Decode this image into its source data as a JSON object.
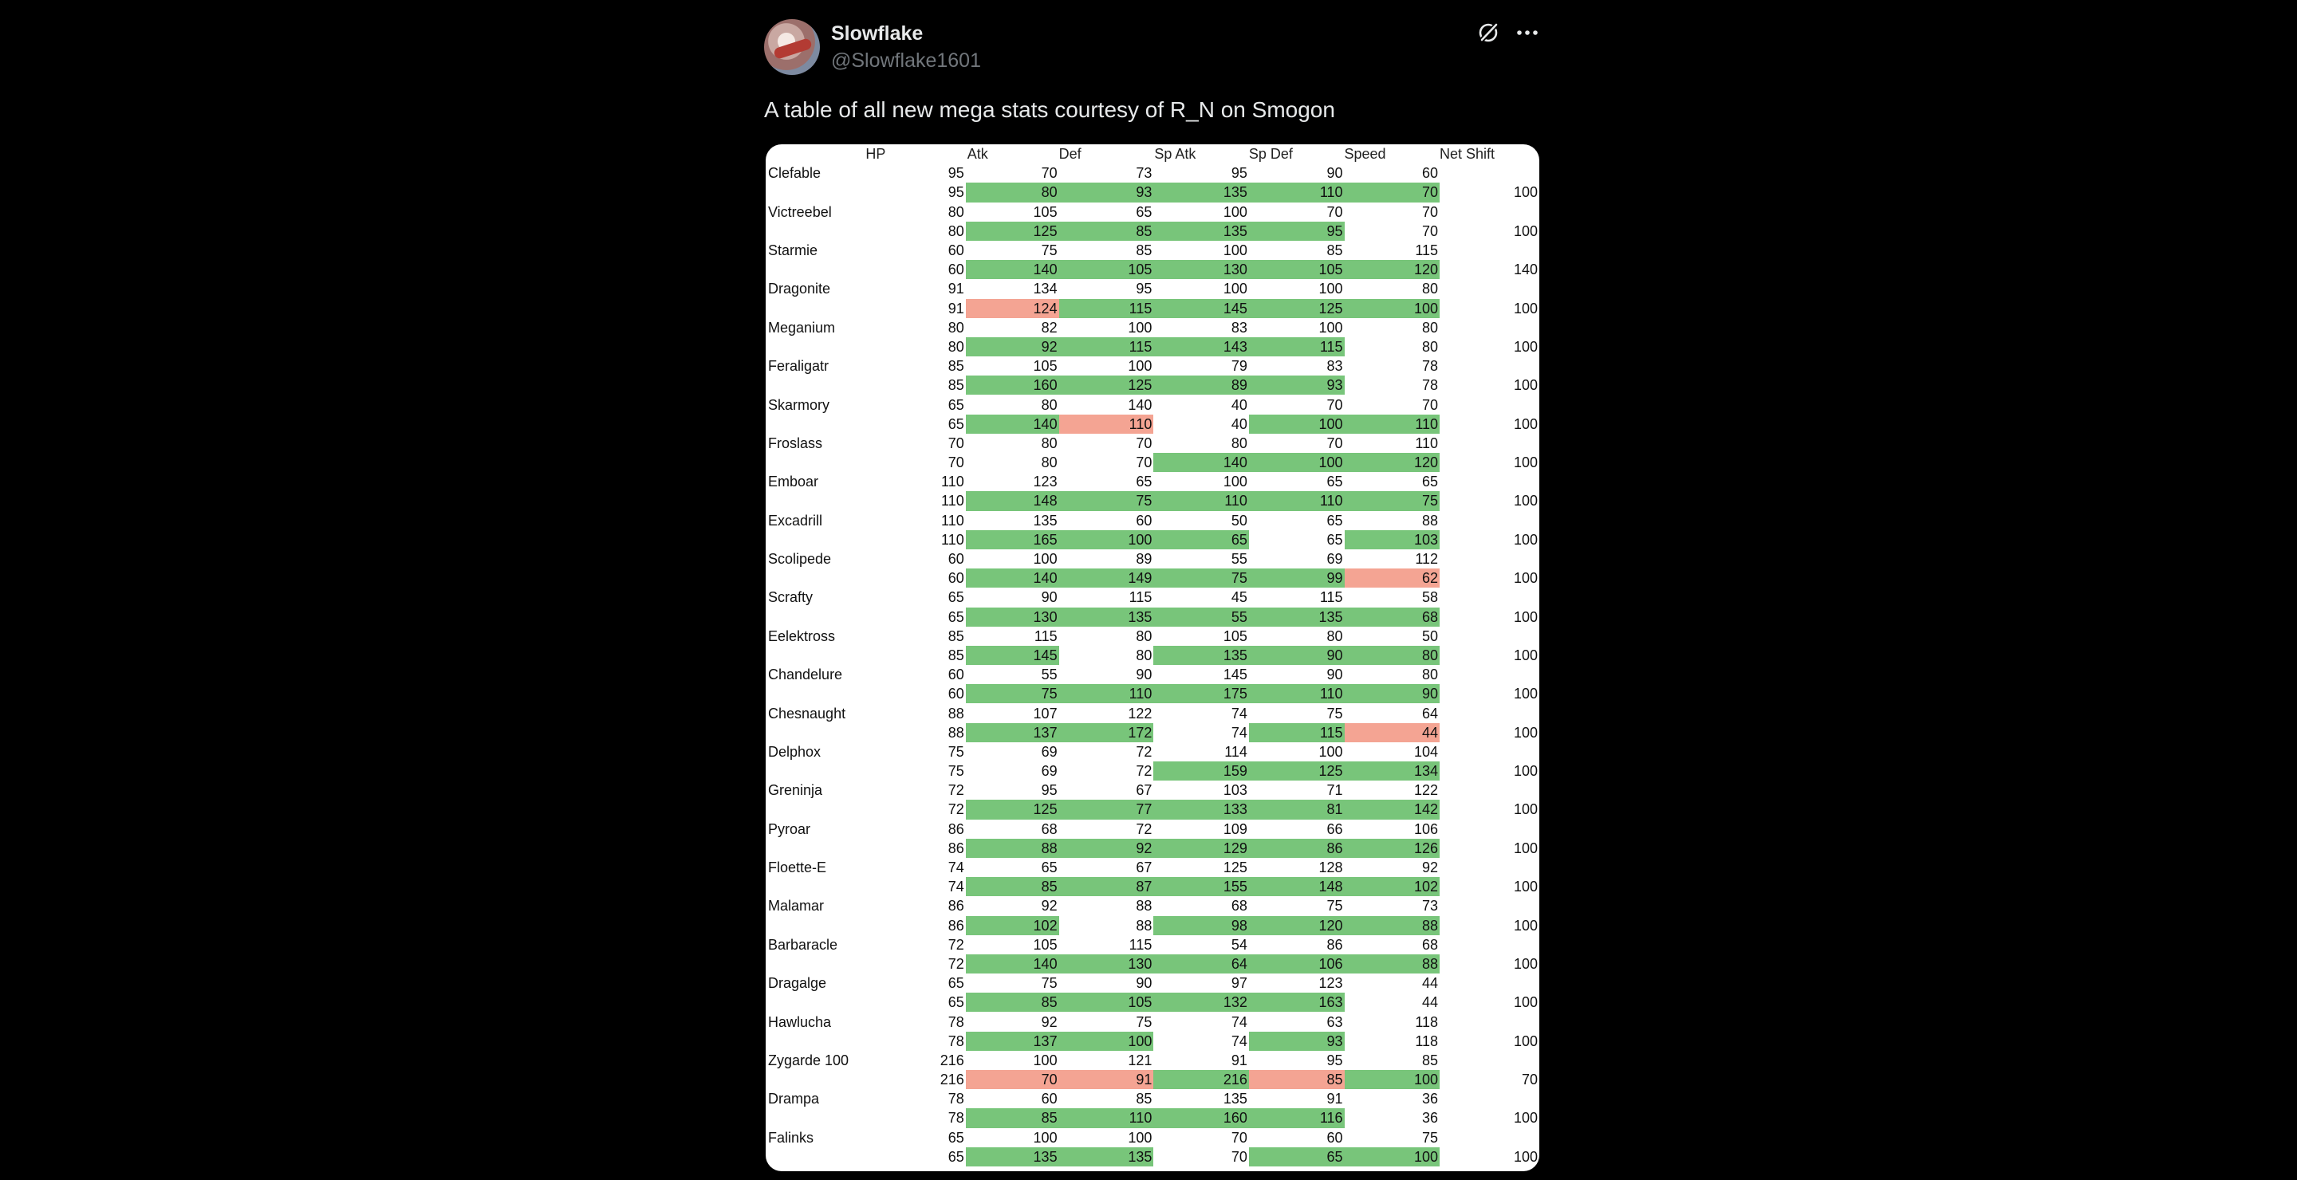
{
  "post": {
    "display_name": "Slowflake",
    "handle": "@Slowflake1601",
    "text": "A table of all new mega stats courtesy of R_N on Smogon",
    "icons": [
      "grok-icon",
      "more-icon"
    ]
  },
  "colors": {
    "increase": "#78c57a",
    "decrease": "#f4a493"
  },
  "table": {
    "headers": [
      "",
      "HP",
      "Atk",
      "Def",
      "Sp Atk",
      "Sp Def",
      "Speed",
      "Net Shift"
    ],
    "rows": [
      {
        "name": "Clefable",
        "base": [
          "95",
          "70",
          "73",
          "95",
          "90",
          "60"
        ],
        "mega": [
          "95",
          "80",
          "93",
          "135",
          "110",
          "70"
        ],
        "shift": "100",
        "mega_marks": [
          "",
          "g",
          "g",
          "g",
          "g",
          "g"
        ]
      },
      {
        "name": "Victreebel",
        "base": [
          "80",
          "105",
          "65",
          "100",
          "70",
          "70"
        ],
        "mega": [
          "80",
          "125",
          "85",
          "135",
          "95",
          "70"
        ],
        "shift": "100",
        "mega_marks": [
          "",
          "g",
          "g",
          "g",
          "g",
          ""
        ]
      },
      {
        "name": "Starmie",
        "base": [
          "60",
          "75",
          "85",
          "100",
          "85",
          "115"
        ],
        "mega": [
          "60",
          "140",
          "105",
          "130",
          "105",
          "120"
        ],
        "shift": "140",
        "mega_marks": [
          "",
          "g",
          "g",
          "g",
          "g",
          "g"
        ]
      },
      {
        "name": "Dragonite",
        "base": [
          "91",
          "134",
          "95",
          "100",
          "100",
          "80"
        ],
        "mega": [
          "91",
          "124",
          "115",
          "145",
          "125",
          "100"
        ],
        "shift": "100",
        "mega_marks": [
          "",
          "r",
          "g",
          "g",
          "g",
          "g"
        ]
      },
      {
        "name": "Meganium",
        "base": [
          "80",
          "82",
          "100",
          "83",
          "100",
          "80"
        ],
        "mega": [
          "80",
          "92",
          "115",
          "143",
          "115",
          "80"
        ],
        "shift": "100",
        "mega_marks": [
          "",
          "g",
          "g",
          "g",
          "g",
          ""
        ]
      },
      {
        "name": "Feraligatr",
        "base": [
          "85",
          "105",
          "100",
          "79",
          "83",
          "78"
        ],
        "mega": [
          "85",
          "160",
          "125",
          "89",
          "93",
          "78"
        ],
        "shift": "100",
        "mega_marks": [
          "",
          "g",
          "g",
          "g",
          "g",
          ""
        ]
      },
      {
        "name": "Skarmory",
        "base": [
          "65",
          "80",
          "140",
          "40",
          "70",
          "70"
        ],
        "mega": [
          "65",
          "140",
          "110",
          "40",
          "100",
          "110"
        ],
        "shift": "100",
        "mega_marks": [
          "",
          "g",
          "r",
          "",
          "g",
          "g"
        ]
      },
      {
        "name": "Froslass",
        "base": [
          "70",
          "80",
          "70",
          "80",
          "70",
          "110"
        ],
        "mega": [
          "70",
          "80",
          "70",
          "140",
          "100",
          "120"
        ],
        "shift": "100",
        "mega_marks": [
          "",
          "",
          "",
          "g",
          "g",
          "g"
        ]
      },
      {
        "name": "Emboar",
        "base": [
          "110",
          "123",
          "65",
          "100",
          "65",
          "65"
        ],
        "mega": [
          "110",
          "148",
          "75",
          "110",
          "110",
          "75"
        ],
        "shift": "100",
        "mega_marks": [
          "",
          "g",
          "g",
          "g",
          "g",
          "g"
        ]
      },
      {
        "name": "Excadrill",
        "base": [
          "110",
          "135",
          "60",
          "50",
          "65",
          "88"
        ],
        "mega": [
          "110",
          "165",
          "100",
          "65",
          "65",
          "103"
        ],
        "shift": "100",
        "mega_marks": [
          "",
          "g",
          "g",
          "g",
          "",
          "g"
        ]
      },
      {
        "name": "Scolipede",
        "base": [
          "60",
          "100",
          "89",
          "55",
          "69",
          "112"
        ],
        "mega": [
          "60",
          "140",
          "149",
          "75",
          "99",
          "62"
        ],
        "shift": "100",
        "mega_marks": [
          "",
          "g",
          "g",
          "g",
          "g",
          "r"
        ]
      },
      {
        "name": "Scrafty",
        "base": [
          "65",
          "90",
          "115",
          "45",
          "115",
          "58"
        ],
        "mega": [
          "65",
          "130",
          "135",
          "55",
          "135",
          "68"
        ],
        "shift": "100",
        "mega_marks": [
          "",
          "g",
          "g",
          "g",
          "g",
          "g"
        ]
      },
      {
        "name": "Eelektross",
        "base": [
          "85",
          "115",
          "80",
          "105",
          "80",
          "50"
        ],
        "mega": [
          "85",
          "145",
          "80",
          "135",
          "90",
          "80"
        ],
        "shift": "100",
        "mega_marks": [
          "",
          "g",
          "",
          "g",
          "g",
          "g"
        ]
      },
      {
        "name": "Chandelure",
        "base": [
          "60",
          "55",
          "90",
          "145",
          "90",
          "80"
        ],
        "mega": [
          "60",
          "75",
          "110",
          "175",
          "110",
          "90"
        ],
        "shift": "100",
        "mega_marks": [
          "",
          "g",
          "g",
          "g",
          "g",
          "g"
        ]
      },
      {
        "name": "Chesnaught",
        "base": [
          "88",
          "107",
          "122",
          "74",
          "75",
          "64"
        ],
        "mega": [
          "88",
          "137",
          "172",
          "74",
          "115",
          "44"
        ],
        "shift": "100",
        "mega_marks": [
          "",
          "g",
          "g",
          "",
          "g",
          "r"
        ]
      },
      {
        "name": "Delphox",
        "base": [
          "75",
          "69",
          "72",
          "114",
          "100",
          "104"
        ],
        "mega": [
          "75",
          "69",
          "72",
          "159",
          "125",
          "134"
        ],
        "shift": "100",
        "mega_marks": [
          "",
          "",
          "",
          "g",
          "g",
          "g"
        ]
      },
      {
        "name": "Greninja",
        "base": [
          "72",
          "95",
          "67",
          "103",
          "71",
          "122"
        ],
        "mega": [
          "72",
          "125",
          "77",
          "133",
          "81",
          "142"
        ],
        "shift": "100",
        "mega_marks": [
          "",
          "g",
          "g",
          "g",
          "g",
          "g"
        ]
      },
      {
        "name": "Pyroar",
        "base": [
          "86",
          "68",
          "72",
          "109",
          "66",
          "106"
        ],
        "mega": [
          "86",
          "88",
          "92",
          "129",
          "86",
          "126"
        ],
        "shift": "100",
        "mega_marks": [
          "",
          "g",
          "g",
          "g",
          "g",
          "g"
        ]
      },
      {
        "name": "Floette-E",
        "base": [
          "74",
          "65",
          "67",
          "125",
          "128",
          "92"
        ],
        "mega": [
          "74",
          "85",
          "87",
          "155",
          "148",
          "102"
        ],
        "shift": "100",
        "mega_marks": [
          "",
          "g",
          "g",
          "g",
          "g",
          "g"
        ]
      },
      {
        "name": "Malamar",
        "base": [
          "86",
          "92",
          "88",
          "68",
          "75",
          "73"
        ],
        "mega": [
          "86",
          "102",
          "88",
          "98",
          "120",
          "88"
        ],
        "shift": "100",
        "mega_marks": [
          "",
          "g",
          "",
          "g",
          "g",
          "g"
        ]
      },
      {
        "name": "Barbaracle",
        "base": [
          "72",
          "105",
          "115",
          "54",
          "86",
          "68"
        ],
        "mega": [
          "72",
          "140",
          "130",
          "64",
          "106",
          "88"
        ],
        "shift": "100",
        "mega_marks": [
          "",
          "g",
          "g",
          "g",
          "g",
          "g"
        ]
      },
      {
        "name": "Dragalge",
        "base": [
          "65",
          "75",
          "90",
          "97",
          "123",
          "44"
        ],
        "mega": [
          "65",
          "85",
          "105",
          "132",
          "163",
          "44"
        ],
        "shift": "100",
        "mega_marks": [
          "",
          "g",
          "g",
          "g",
          "g",
          ""
        ]
      },
      {
        "name": "Hawlucha",
        "base": [
          "78",
          "92",
          "75",
          "74",
          "63",
          "118"
        ],
        "mega": [
          "78",
          "137",
          "100",
          "74",
          "93",
          "118"
        ],
        "shift": "100",
        "mega_marks": [
          "",
          "g",
          "g",
          "",
          "g",
          ""
        ]
      },
      {
        "name": "Zygarde 100",
        "base": [
          "216",
          "100",
          "121",
          "91",
          "95",
          "85"
        ],
        "mega": [
          "216",
          "70",
          "91",
          "216",
          "85",
          "100"
        ],
        "shift": "70",
        "mega_marks": [
          "",
          "r",
          "r",
          "g",
          "r",
          "g"
        ]
      },
      {
        "name": "Drampa",
        "base": [
          "78",
          "60",
          "85",
          "135",
          "91",
          "36"
        ],
        "mega": [
          "78",
          "85",
          "110",
          "160",
          "116",
          "36"
        ],
        "shift": "100",
        "mega_marks": [
          "",
          "g",
          "g",
          "g",
          "g",
          ""
        ]
      },
      {
        "name": "Falinks",
        "base": [
          "65",
          "100",
          "100",
          "70",
          "60",
          "75"
        ],
        "mega": [
          "65",
          "135",
          "135",
          "70",
          "65",
          "100"
        ],
        "shift": "100",
        "mega_marks": [
          "",
          "g",
          "g",
          "",
          "g",
          "g"
        ]
      }
    ]
  }
}
